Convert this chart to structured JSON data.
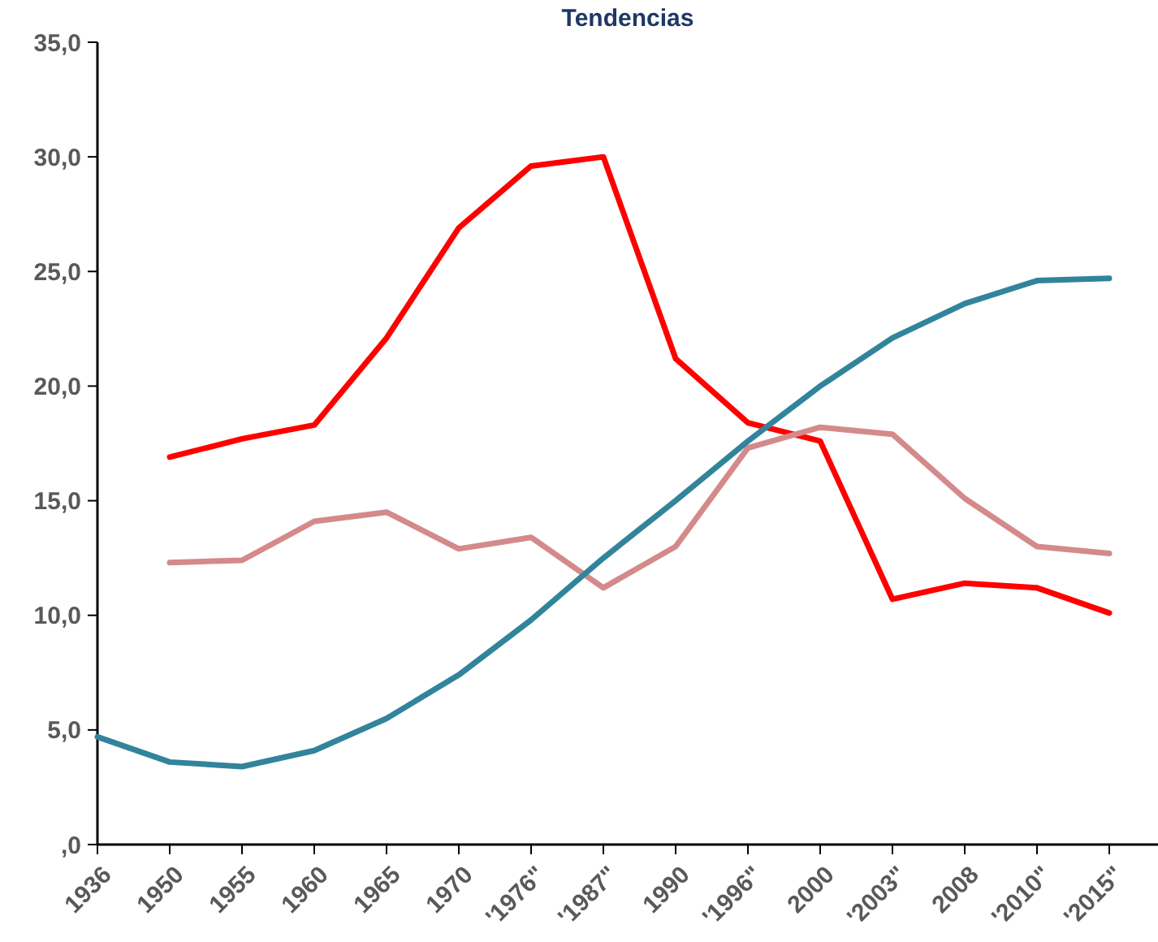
{
  "chart_data": {
    "type": "line",
    "title": "Tendencias",
    "categories": [
      "1936",
      "1950",
      "1955",
      "1960",
      "1965",
      "1970",
      "'1976\"",
      "'1987\"",
      "1990",
      "'1996\"",
      "2000",
      "'2003\"",
      "2008",
      "'2010\"",
      "'2015\""
    ],
    "series": [
      {
        "color": "#ff0000",
        "values": [
          null,
          16.9,
          17.7,
          18.3,
          22.1,
          26.9,
          29.6,
          30.0,
          21.2,
          18.4,
          17.6,
          10.7,
          11.4,
          11.2,
          10.1
        ]
      },
      {
        "color": "#d48a8a",
        "values": [
          null,
          12.3,
          12.4,
          14.1,
          14.5,
          12.9,
          13.4,
          11.2,
          13.0,
          17.3,
          18.2,
          17.9,
          15.1,
          13.0,
          12.7
        ]
      },
      {
        "color": "#31849b",
        "values": [
          4.7,
          3.6,
          3.4,
          4.1,
          5.5,
          7.4,
          9.8,
          12.5,
          15.0,
          17.6,
          20.0,
          22.1,
          23.6,
          24.6,
          24.7
        ]
      }
    ],
    "ylim": [
      0,
      35
    ],
    "yticks": [
      {
        "value": 0,
        "label": ",0"
      },
      {
        "value": 5,
        "label": "5,0"
      },
      {
        "value": 10,
        "label": "10,0"
      },
      {
        "value": 15,
        "label": "15,0"
      },
      {
        "value": 20,
        "label": "20,0"
      },
      {
        "value": 25,
        "label": "25,0"
      },
      {
        "value": 30,
        "label": "30,0"
      },
      {
        "value": 35,
        "label": "35,0"
      }
    ],
    "grid": false,
    "marker": "none",
    "line_style": "solid"
  }
}
